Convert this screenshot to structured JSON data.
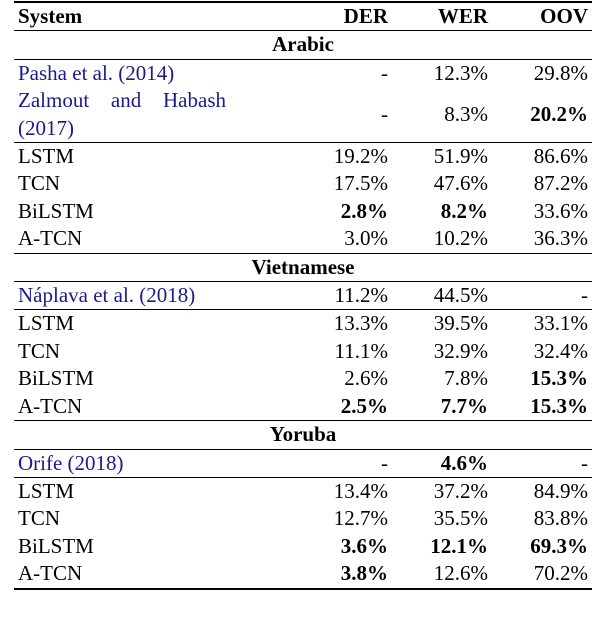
{
  "header": {
    "system": "System",
    "der": "DER",
    "wer": "WER",
    "oov": "OOV"
  },
  "groups": [
    {
      "language": "Arabic",
      "rows": [
        {
          "system": "Pasha et al. (2014)",
          "der": "-",
          "wer": "12.3%",
          "oov": "29.8%",
          "cited": true
        },
        {
          "system": "Zalmout and Habash (2017)",
          "der": "-",
          "wer": "8.3%",
          "oov": "20.2%",
          "cited": true,
          "bold": [
            "oov"
          ]
        },
        {
          "system": "LSTM",
          "der": "19.2%",
          "wer": "51.9%",
          "oov": "86.6%"
        },
        {
          "system": "TCN",
          "der": "17.5%",
          "wer": "47.6%",
          "oov": "87.2%"
        },
        {
          "system": "BiLSTM",
          "der": "2.8%",
          "wer": "8.2%",
          "oov": "33.6%",
          "bold": [
            "der",
            "wer"
          ]
        },
        {
          "system": "A-TCN",
          "der": "3.0%",
          "wer": "10.2%",
          "oov": "36.3%"
        }
      ]
    },
    {
      "language": "Vietnamese",
      "rows": [
        {
          "system": "Náplava et al. (2018)",
          "der": "11.2%",
          "wer": "44.5%",
          "oov": "-",
          "cited": true
        },
        {
          "system": "LSTM",
          "der": "13.3%",
          "wer": "39.5%",
          "oov": "33.1%"
        },
        {
          "system": "TCN",
          "der": "11.1%",
          "wer": "32.9%",
          "oov": "32.4%"
        },
        {
          "system": "BiLSTM",
          "der": "2.6%",
          "wer": "7.8%",
          "oov": "15.3%",
          "bold": [
            "oov"
          ]
        },
        {
          "system": "A-TCN",
          "der": "2.5%",
          "wer": "7.7%",
          "oov": "15.3%",
          "bold": [
            "der",
            "wer",
            "oov"
          ]
        }
      ]
    },
    {
      "language": "Yoruba",
      "rows": [
        {
          "system": "Orife (2018)",
          "der": "-",
          "wer": "4.6%",
          "oov": "-",
          "cited": true,
          "bold": [
            "wer"
          ]
        },
        {
          "system": "LSTM",
          "der": "13.4%",
          "wer": "37.2%",
          "oov": "84.9%"
        },
        {
          "system": "TCN",
          "der": "12.7%",
          "wer": "35.5%",
          "oov": "83.8%"
        },
        {
          "system": "BiLSTM",
          "der": "3.6%",
          "wer": "12.1%",
          "oov": "69.3%",
          "bold": [
            "der",
            "wer",
            "oov"
          ]
        },
        {
          "system": "A-TCN",
          "der": "3.8%",
          "wer": "12.6%",
          "oov": "70.2%",
          "bold": [
            "der"
          ]
        }
      ]
    }
  ]
}
